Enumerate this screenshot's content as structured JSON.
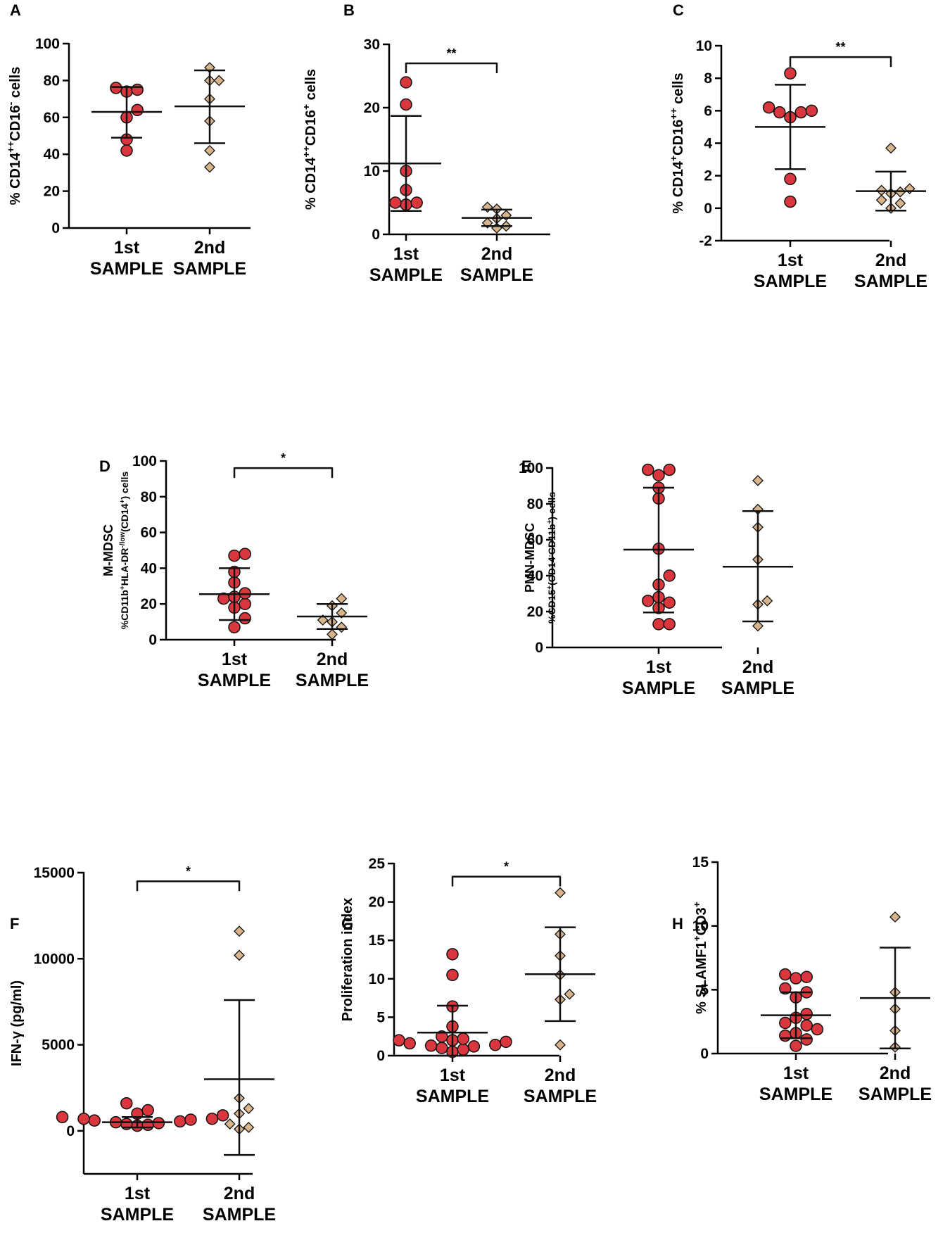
{
  "figure_title": "",
  "colors": {
    "group1": "#d9373d",
    "group2": "#d7b48b",
    "stroke": "#111111",
    "axis": "#000000"
  },
  "marker_icons": {
    "group1": "circle-marker-icon",
    "group2": "diamond-marker-icon"
  },
  "chart_data": [
    {
      "id": "A",
      "panel_letter": "A",
      "type": "scatter",
      "categories": [
        "1st\nSAMPLE",
        "2nd\nSAMPLE"
      ],
      "ylabel": {
        "main": "% CD14",
        "parts": [
          [
            "% CD14",
            ""
          ],
          [
            "++",
            "sup"
          ],
          [
            "CD16",
            ""
          ],
          [
            "-",
            "sup"
          ],
          [
            " cells",
            ""
          ]
        ]
      },
      "ylim": [
        0,
        100
      ],
      "yticks": [
        0,
        20,
        40,
        60,
        80,
        100
      ],
      "ytick_labels": [
        "0",
        "20",
        "40",
        "60",
        "80",
        "100"
      ],
      "series": [
        {
          "name": "1st SAMPLE",
          "values": [
            42,
            48,
            60,
            64,
            74,
            75,
            76
          ],
          "mean": 63,
          "sd_low": 49,
          "sd_high": 76.5
        },
        {
          "name": "2nd SAMPLE",
          "values": [
            33,
            42,
            58,
            70,
            80,
            80,
            87
          ],
          "mean": 66,
          "sd_low": 46,
          "sd_high": 85.5
        }
      ],
      "significance": null
    },
    {
      "id": "B",
      "panel_letter": "B",
      "type": "scatter",
      "categories": [
        "1st\nSAMPLE",
        "2nd\nSAMPLE"
      ],
      "ylabel": {
        "main": "% CD14",
        "parts": [
          [
            "% CD14",
            ""
          ],
          [
            "++",
            "sup"
          ],
          [
            "CD16",
            ""
          ],
          [
            "+",
            "sup"
          ],
          [
            " cells",
            ""
          ]
        ]
      },
      "ylim": [
        0,
        30
      ],
      "yticks": [
        0,
        10,
        20,
        30
      ],
      "ytick_labels": [
        "0",
        "10",
        "20",
        "30"
      ],
      "series": [
        {
          "name": "1st SAMPLE",
          "values": [
            4.7,
            5.0,
            5.0,
            7.0,
            10.0,
            20.5,
            24.0
          ],
          "mean": 11.2,
          "sd_low": 3.7,
          "sd_high": 18.7
        },
        {
          "name": "2nd SAMPLE",
          "values": [
            1.0,
            1.3,
            1.8,
            2.5,
            3.0,
            4.0,
            4.3
          ],
          "mean": 2.6,
          "sd_low": 1.3,
          "sd_high": 3.9
        }
      ],
      "significance": {
        "label": "**",
        "y": 27
      }
    },
    {
      "id": "C",
      "panel_letter": "C",
      "type": "scatter",
      "categories": [
        "1st\nSAMPLE",
        "2nd\nSAMPLE"
      ],
      "ylabel": {
        "main": "% CD14",
        "parts": [
          [
            "% CD14",
            ""
          ],
          [
            "+",
            "sup"
          ],
          [
            "CD16",
            ""
          ],
          [
            "++",
            "sup"
          ],
          [
            " cells",
            ""
          ]
        ]
      },
      "ylim": [
        -2,
        10
      ],
      "yticks": [
        -2,
        0,
        2,
        4,
        6,
        8,
        10
      ],
      "ytick_labels": [
        "-2",
        "0",
        "2",
        "4",
        "6",
        "8",
        "10"
      ],
      "series": [
        {
          "name": "1st SAMPLE",
          "values": [
            0.4,
            1.8,
            5.6,
            5.9,
            5.9,
            6.0,
            6.2,
            8.3
          ],
          "mean": 5.0,
          "sd_low": 2.4,
          "sd_high": 7.6
        },
        {
          "name": "2nd SAMPLE",
          "values": [
            0.0,
            0.3,
            0.5,
            0.9,
            1.0,
            1.1,
            1.2,
            3.7
          ],
          "mean": 1.05,
          "sd_low": -0.15,
          "sd_high": 2.25
        }
      ],
      "significance": {
        "label": "**",
        "y": 9.3
      }
    },
    {
      "id": "D",
      "panel_letter": "D",
      "type": "scatter",
      "categories": [
        "1st\nSAMPLE",
        "2nd\nSAMPLE"
      ],
      "ylabel": {
        "main": "M-MDSC",
        "parts": [
          [
            "%CD11b",
            ""
          ],
          [
            "+",
            "sup"
          ],
          [
            "HLA-DR",
            ""
          ],
          [
            "-/low",
            "sup"
          ],
          [
            "(CD14",
            ""
          ],
          [
            "+",
            "sup"
          ],
          [
            ") cells",
            ""
          ]
        ]
      },
      "ylim": [
        0,
        100
      ],
      "yticks": [
        0,
        20,
        40,
        60,
        80,
        100
      ],
      "ytick_labels": [
        "0",
        "20",
        "40",
        "60",
        "80",
        "100"
      ],
      "series": [
        {
          "name": "1st SAMPLE",
          "values": [
            7,
            12,
            18,
            20,
            23,
            24,
            26,
            32,
            38,
            47,
            48
          ],
          "mean": 25.5,
          "sd_low": 11,
          "sd_high": 40
        },
        {
          "name": "2nd SAMPLE",
          "values": [
            3,
            7,
            10,
            11,
            15,
            19,
            23
          ],
          "mean": 13,
          "sd_low": 6,
          "sd_high": 20
        }
      ],
      "significance": {
        "label": "*",
        "y": 96
      }
    },
    {
      "id": "E",
      "panel_letter": "E",
      "type": "scatter",
      "categories": [
        "1st\nSAMPLE",
        "2nd\nSAMPLE"
      ],
      "ylabel": {
        "main": "PMN-MDSC",
        "parts": [
          [
            "%CD15",
            ""
          ],
          [
            "+",
            "sup"
          ],
          [
            "(CD14",
            ""
          ],
          [
            "-",
            "sup"
          ],
          [
            "CD11b",
            ""
          ],
          [
            "+",
            "sup"
          ],
          [
            ") cells",
            ""
          ]
        ]
      },
      "ylim": [
        0,
        100
      ],
      "yticks": [
        0,
        20,
        40,
        60,
        80,
        100
      ],
      "ytick_labels": [
        "0",
        "20",
        "40",
        "60",
        "80",
        "100"
      ],
      "series": [
        {
          "name": "1st SAMPLE",
          "values": [
            13,
            13,
            22,
            25,
            26,
            28,
            35,
            40,
            55,
            83,
            89,
            96,
            99,
            99
          ],
          "mean": 54.5,
          "sd_low": 19.5,
          "sd_high": 89
        },
        {
          "name": "2nd SAMPLE",
          "values": [
            12,
            24,
            26,
            49,
            67,
            77,
            93
          ],
          "mean": 45,
          "sd_low": 14.5,
          "sd_high": 76
        }
      ],
      "significance": null
    },
    {
      "id": "F",
      "panel_letter": "F",
      "type": "scatter",
      "categories": [
        "1st\nSAMPLE",
        "2nd\nSAMPLE"
      ],
      "ylabel": {
        "main": "IFN-γ (pg/ml)",
        "parts": [
          [
            "IFN-γ (pg/ml)",
            ""
          ]
        ]
      },
      "ylim": [
        -2500,
        15000
      ],
      "yticks": [
        0,
        5000,
        10000,
        15000
      ],
      "ytick_labels": [
        "0",
        "5000",
        "10000",
        "15000"
      ],
      "series": [
        {
          "name": "1st SAMPLE",
          "values": [
            300,
            350,
            400,
            450,
            500,
            550,
            600,
            650,
            700,
            700,
            800,
            900,
            1000,
            1200,
            1600
          ],
          "mean": 500,
          "sd_low": 200,
          "sd_high": 800
        },
        {
          "name": "2nd SAMPLE",
          "values": [
            100,
            200,
            400,
            1000,
            1300,
            1900,
            10200,
            11600
          ],
          "mean": 3000,
          "sd_low": -1400,
          "sd_high": 7600
        }
      ],
      "significance": {
        "label": "*",
        "y": 14500
      }
    },
    {
      "id": "G",
      "panel_letter": "G",
      "type": "scatter",
      "categories": [
        "1st\nSAMPLE",
        "2nd\nSAMPLE"
      ],
      "ylabel": {
        "main": "Proliferation index",
        "parts": [
          [
            "Proliferation index",
            ""
          ]
        ]
      },
      "ylim": [
        0,
        25
      ],
      "yticks": [
        0,
        5,
        10,
        15,
        20,
        25
      ],
      "ytick_labels": [
        "0",
        "5",
        "10",
        "15",
        "20",
        "25"
      ],
      "series": [
        {
          "name": "1st SAMPLE",
          "values": [
            0.5,
            0.8,
            1.0,
            1.2,
            1.3,
            1.4,
            1.6,
            1.8,
            2.0,
            2.0,
            2.2,
            2.5,
            3.8,
            6.4,
            10.5,
            13.2
          ],
          "mean": 3.0,
          "sd_low": 0.0,
          "sd_high": 6.5
        },
        {
          "name": "2nd SAMPLE",
          "values": [
            1.4,
            7.3,
            8.0,
            10.5,
            13.0,
            15.8,
            21.2
          ],
          "mean": 10.6,
          "sd_low": 4.5,
          "sd_high": 16.7
        }
      ],
      "significance": {
        "label": "*",
        "y": 23.3
      }
    },
    {
      "id": "H",
      "panel_letter": "H",
      "type": "scatter",
      "categories": [
        "1st\nSAMPLE",
        "2nd\nSAMPLE"
      ],
      "ylabel": {
        "main": "% SLAMF1",
        "parts": [
          [
            "% SLAMF1",
            ""
          ],
          [
            "+",
            "sup"
          ],
          [
            "CD3",
            ""
          ],
          [
            "+",
            "sup"
          ]
        ]
      },
      "ylim": [
        0,
        15
      ],
      "yticks": [
        0,
        5,
        10,
        15
      ],
      "ytick_labels": [
        "0",
        "5",
        "10",
        "15"
      ],
      "series": [
        {
          "name": "1st SAMPLE",
          "values": [
            0.6,
            1.1,
            1.4,
            1.6,
            1.9,
            2.2,
            2.4,
            2.8,
            3.1,
            4.4,
            4.8,
            5.1,
            5.9,
            6.0,
            6.2
          ],
          "mean": 3.0,
          "sd_low": 1.2,
          "sd_high": 4.8
        },
        {
          "name": "2nd SAMPLE",
          "values": [
            0.5,
            1.8,
            3.5,
            4.8,
            10.7
          ],
          "mean": 4.35,
          "sd_low": 0.4,
          "sd_high": 8.3
        }
      ],
      "significance": null
    }
  ]
}
